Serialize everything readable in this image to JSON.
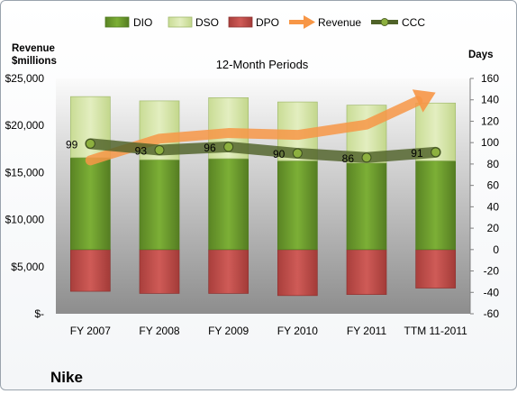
{
  "company": "Nike",
  "chart_data": {
    "type": "bar",
    "title": "12-Month Periods",
    "left_axis_label": [
      "Revenue",
      "$millions"
    ],
    "right_axis_label": "Days",
    "categories": [
      "FY 2007",
      "FY 2008",
      "FY 2009",
      "FY 2010",
      "FY 2011",
      "TTM 11-2011"
    ],
    "left_axis": {
      "min": 0,
      "max": 25000,
      "ticks": [
        {
          "value": 0,
          "label": "$-"
        },
        {
          "value": 5000,
          "label": "$5,000"
        },
        {
          "value": 10000,
          "label": "$10,000"
        },
        {
          "value": 15000,
          "label": "$15,000"
        },
        {
          "value": 20000,
          "label": "$20,000"
        },
        {
          "value": 25000,
          "label": "$25,000"
        }
      ]
    },
    "right_axis": {
      "min": -60,
      "max": 160,
      "ticks": [
        -60,
        -40,
        -20,
        0,
        20,
        40,
        60,
        80,
        100,
        120,
        140,
        160
      ]
    },
    "series": [
      {
        "name": "DIO",
        "axis": "days",
        "color": "#6e9a2e",
        "values": [
          86,
          84,
          85,
          83,
          81,
          83
        ]
      },
      {
        "name": "DSO",
        "axis": "days",
        "color": "#d7e6ae",
        "values": [
          57,
          55,
          57,
          55,
          54,
          54
        ]
      },
      {
        "name": "DPO",
        "axis": "days",
        "color": "#c0504d",
        "values": [
          -39,
          -41,
          -41,
          -43,
          -42,
          -36
        ]
      },
      {
        "name": "Revenue",
        "axis": "revenue",
        "color": "#f79646",
        "values": [
          16300,
          18600,
          19200,
          19000,
          20100,
          23500
        ]
      },
      {
        "name": "CCC",
        "axis": "days",
        "color": "#4f6228",
        "values": [
          99,
          93,
          96,
          90,
          86,
          91
        ]
      }
    ],
    "data_labels": [
      "99",
      "93",
      "96",
      "90",
      "86",
      "91"
    ],
    "legend": "top"
  }
}
